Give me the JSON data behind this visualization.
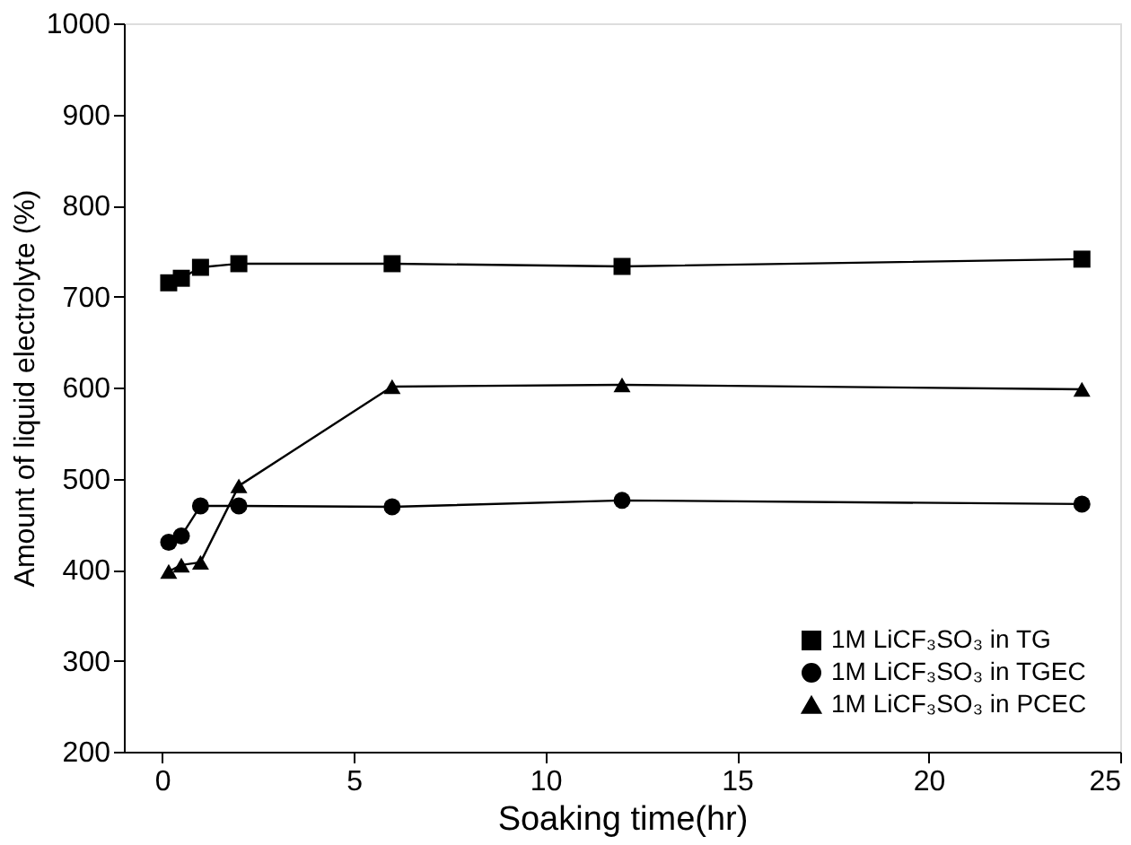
{
  "chart_data": {
    "type": "line",
    "xlabel": "Soaking time(hr)",
    "ylabel": "Amount of liquid electrolyte (%)",
    "x": [
      0.17,
      0.5,
      1,
      2,
      6,
      12,
      24
    ],
    "series": [
      {
        "name": "1M LiCF₃SO₃ in TG",
        "color": "#000000",
        "marker": "square",
        "values": [
          715,
          720,
          732,
          736,
          736,
          733,
          741
        ]
      },
      {
        "name": "1M LiCF₃SO₃ in TGEC",
        "color": "#000000",
        "marker": "circle",
        "values": [
          430,
          437,
          470,
          470,
          469,
          476,
          472
        ]
      },
      {
        "name": "1M LiCF₃SO₃ in PCEC",
        "color": "#000000",
        "marker": "triangle",
        "values": [
          398,
          405,
          408,
          492,
          601,
          603,
          598
        ]
      }
    ],
    "xlim": [
      -1,
      25
    ],
    "xticks": [
      0,
      5,
      10,
      15,
      20,
      25
    ],
    "ylim": [
      200,
      1000
    ],
    "yticks": [
      200,
      300,
      400,
      500,
      600,
      700,
      800,
      900,
      1000
    ],
    "grid": false,
    "legend": "bottom right",
    "line_style": "solid"
  }
}
